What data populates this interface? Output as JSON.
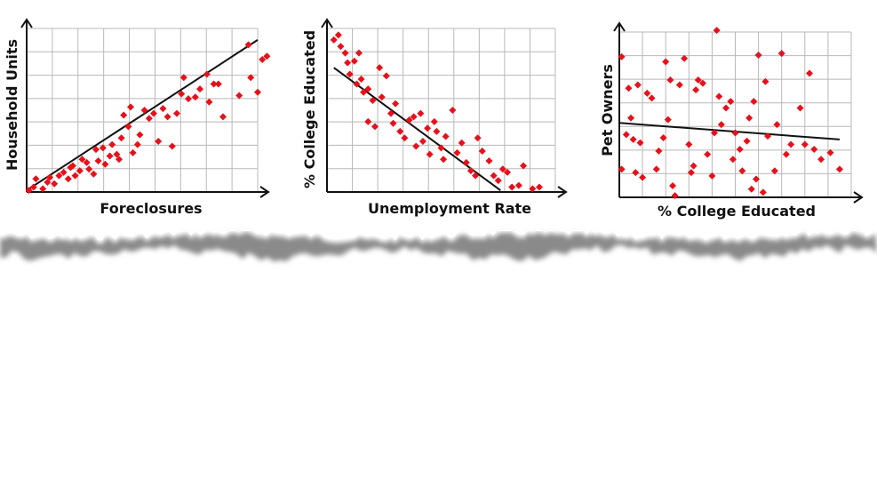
{
  "colors": {
    "background": "#ffffff",
    "grid": "#b8b8b8",
    "axis": "#111111",
    "point": "#e8101a",
    "trend": "#111111",
    "tear_shadow": "#8a8a8a"
  },
  "chart_data": [
    {
      "type": "scatter",
      "title": "",
      "xlabel": "Foreclosures",
      "ylabel": "Household Units",
      "xlim": [
        0,
        10
      ],
      "ylim": [
        0,
        10
      ],
      "grid": true,
      "trend": [
        [
          0,
          0.1
        ],
        [
          10,
          9.3
        ]
      ],
      "points": [
        [
          0.1,
          0.1
        ],
        [
          0.3,
          0.3
        ],
        [
          0.4,
          0.8
        ],
        [
          0.7,
          0.2
        ],
        [
          0.9,
          0.6
        ],
        [
          1.0,
          0.9
        ],
        [
          1.2,
          0.5
        ],
        [
          1.4,
          1.0
        ],
        [
          1.6,
          1.2
        ],
        [
          1.8,
          0.8
        ],
        [
          1.9,
          1.5
        ],
        [
          2.0,
          1.6
        ],
        [
          2.1,
          1.0
        ],
        [
          2.3,
          1.3
        ],
        [
          2.4,
          2.0
        ],
        [
          2.6,
          1.8
        ],
        [
          2.7,
          1.4
        ],
        [
          2.9,
          1.1
        ],
        [
          3.0,
          2.6
        ],
        [
          3.1,
          1.9
        ],
        [
          3.3,
          2.7
        ],
        [
          3.4,
          1.7
        ],
        [
          3.6,
          2.2
        ],
        [
          3.7,
          2.9
        ],
        [
          3.9,
          2.3
        ],
        [
          4.0,
          2.0
        ],
        [
          4.1,
          3.3
        ],
        [
          4.2,
          4.7
        ],
        [
          4.4,
          4.0
        ],
        [
          4.5,
          5.2
        ],
        [
          4.6,
          2.4
        ],
        [
          4.8,
          2.9
        ],
        [
          4.9,
          3.5
        ],
        [
          5.1,
          5.0
        ],
        [
          5.3,
          4.5
        ],
        [
          5.5,
          4.8
        ],
        [
          5.7,
          3.1
        ],
        [
          5.9,
          5.1
        ],
        [
          6.1,
          4.6
        ],
        [
          6.3,
          2.8
        ],
        [
          6.5,
          4.8
        ],
        [
          6.7,
          6.0
        ],
        [
          6.8,
          7.0
        ],
        [
          7.0,
          5.7
        ],
        [
          7.3,
          5.8
        ],
        [
          7.5,
          6.3
        ],
        [
          7.8,
          7.2
        ],
        [
          7.9,
          5.5
        ],
        [
          8.1,
          6.6
        ],
        [
          8.3,
          6.6
        ],
        [
          8.5,
          4.6
        ],
        [
          9.2,
          5.9
        ],
        [
          9.6,
          9.0
        ],
        [
          9.7,
          7.0
        ],
        [
          10.0,
          6.1
        ],
        [
          10.2,
          8.1
        ],
        [
          10.4,
          8.3
        ]
      ]
    },
    {
      "type": "scatter",
      "title": "",
      "xlabel": "Unemployment Rate",
      "ylabel": "% College Educated",
      "xlim": [
        0,
        10
      ],
      "ylim": [
        0,
        10
      ],
      "grid": true,
      "trend": [
        [
          0.3,
          7.6
        ],
        [
          7.6,
          0.1
        ]
      ],
      "points": [
        [
          0.3,
          9.3
        ],
        [
          0.5,
          9.6
        ],
        [
          0.6,
          8.9
        ],
        [
          0.8,
          8.5
        ],
        [
          0.9,
          7.9
        ],
        [
          1.0,
          7.2
        ],
        [
          1.2,
          8.0
        ],
        [
          1.3,
          6.6
        ],
        [
          1.4,
          8.5
        ],
        [
          1.5,
          6.9
        ],
        [
          1.6,
          6.1
        ],
        [
          1.8,
          6.3
        ],
        [
          1.8,
          4.3
        ],
        [
          2.0,
          5.6
        ],
        [
          2.1,
          4.0
        ],
        [
          2.3,
          7.6
        ],
        [
          2.4,
          5.8
        ],
        [
          2.6,
          7.1
        ],
        [
          2.8,
          4.8
        ],
        [
          2.9,
          4.2
        ],
        [
          3.0,
          5.4
        ],
        [
          3.2,
          3.7
        ],
        [
          3.4,
          3.3
        ],
        [
          3.6,
          4.4
        ],
        [
          3.8,
          4.6
        ],
        [
          3.9,
          2.8
        ],
        [
          4.1,
          4.8
        ],
        [
          4.2,
          3.1
        ],
        [
          4.4,
          3.9
        ],
        [
          4.5,
          2.3
        ],
        [
          4.7,
          4.3
        ],
        [
          4.8,
          3.7
        ],
        [
          5.0,
          2.7
        ],
        [
          5.1,
          2.0
        ],
        [
          5.2,
          3.4
        ],
        [
          5.5,
          5.0
        ],
        [
          5.7,
          2.4
        ],
        [
          5.9,
          3.0
        ],
        [
          6.1,
          1.8
        ],
        [
          6.3,
          1.3
        ],
        [
          6.5,
          1.0
        ],
        [
          6.6,
          3.3
        ],
        [
          6.8,
          2.5
        ],
        [
          7.1,
          1.9
        ],
        [
          7.3,
          1.0
        ],
        [
          7.5,
          0.7
        ],
        [
          7.7,
          1.4
        ],
        [
          7.9,
          1.2
        ],
        [
          8.1,
          0.3
        ],
        [
          8.4,
          0.4
        ],
        [
          8.6,
          1.6
        ],
        [
          9.0,
          0.2
        ],
        [
          9.3,
          0.3
        ]
      ]
    },
    {
      "type": "scatter",
      "title": "",
      "xlabel": "% College Educated",
      "ylabel": "Pet Owners",
      "xlim": [
        0,
        10
      ],
      "ylim": [
        0,
        10
      ],
      "grid": true,
      "trend": [
        [
          0,
          4.5
        ],
        [
          9.5,
          3.5
        ]
      ],
      "points": [
        [
          0.1,
          8.5
        ],
        [
          0.1,
          1.7
        ],
        [
          0.3,
          3.8
        ],
        [
          0.4,
          6.6
        ],
        [
          0.5,
          4.8
        ],
        [
          0.6,
          3.5
        ],
        [
          0.7,
          1.5
        ],
        [
          0.8,
          6.8
        ],
        [
          0.9,
          3.3
        ],
        [
          1.0,
          1.2
        ],
        [
          1.2,
          6.3
        ],
        [
          1.4,
          6.0
        ],
        [
          1.6,
          1.7
        ],
        [
          1.7,
          2.8
        ],
        [
          1.9,
          3.6
        ],
        [
          2.0,
          8.2
        ],
        [
          2.1,
          4.7
        ],
        [
          2.2,
          7.1
        ],
        [
          2.3,
          0.7
        ],
        [
          2.4,
          0.1
        ],
        [
          2.6,
          6.8
        ],
        [
          2.8,
          8.4
        ],
        [
          3.0,
          3.2
        ],
        [
          3.1,
          1.5
        ],
        [
          3.2,
          1.9
        ],
        [
          3.3,
          6.5
        ],
        [
          3.4,
          7.1
        ],
        [
          3.6,
          6.9
        ],
        [
          3.8,
          2.6
        ],
        [
          4.0,
          1.3
        ],
        [
          4.1,
          3.9
        ],
        [
          4.2,
          10.1
        ],
        [
          4.3,
          6.1
        ],
        [
          4.4,
          4.4
        ],
        [
          4.6,
          5.4
        ],
        [
          4.8,
          5.8
        ],
        [
          4.9,
          2.3
        ],
        [
          5.0,
          3.9
        ],
        [
          5.2,
          2.9
        ],
        [
          5.3,
          1.6
        ],
        [
          5.5,
          3.4
        ],
        [
          5.6,
          4.8
        ],
        [
          5.7,
          0.5
        ],
        [
          5.8,
          5.8
        ],
        [
          5.9,
          1.1
        ],
        [
          6.0,
          8.6
        ],
        [
          6.2,
          0.3
        ],
        [
          6.3,
          7.0
        ],
        [
          6.4,
          3.7
        ],
        [
          6.7,
          1.6
        ],
        [
          6.8,
          4.4
        ],
        [
          7.0,
          8.7
        ],
        [
          7.2,
          2.6
        ],
        [
          7.4,
          3.2
        ],
        [
          7.8,
          5.4
        ],
        [
          8.0,
          3.2
        ],
        [
          8.2,
          7.5
        ],
        [
          8.4,
          2.9
        ],
        [
          8.7,
          2.3
        ],
        [
          9.1,
          2.7
        ],
        [
          9.5,
          1.7
        ]
      ]
    }
  ]
}
